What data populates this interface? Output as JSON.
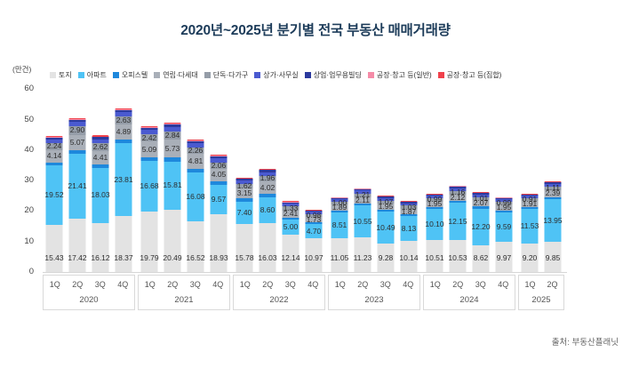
{
  "page": {
    "title": "2020년~2025년 분기별 전국 부동산 매매거래량",
    "unit_label": "(만건)",
    "source": "출처: 부동산플래닛"
  },
  "chart_data": {
    "type": "bar",
    "stacked": true,
    "unit": "만건 (ten-thousand transactions)",
    "title": "2020년~2025년 분기별 전국 부동산 매매거래량",
    "ylim": [
      0,
      60
    ],
    "yticks": [
      0,
      10,
      20,
      30,
      40,
      50,
      60
    ],
    "grid": false,
    "legend_position": "top",
    "groups": [
      {
        "year": "2020",
        "quarters": [
          "1Q",
          "2Q",
          "3Q",
          "4Q"
        ]
      },
      {
        "year": "2021",
        "quarters": [
          "1Q",
          "2Q",
          "3Q",
          "4Q"
        ]
      },
      {
        "year": "2022",
        "quarters": [
          "1Q",
          "2Q",
          "3Q",
          "4Q"
        ]
      },
      {
        "year": "2023",
        "quarters": [
          "1Q",
          "2Q",
          "3Q",
          "4Q"
        ]
      },
      {
        "year": "2024",
        "quarters": [
          "1Q",
          "2Q",
          "3Q",
          "4Q"
        ]
      },
      {
        "year": "2025",
        "quarters": [
          "1Q",
          "2Q"
        ]
      }
    ],
    "series": [
      {
        "name": "토지",
        "color": "#e3e3e3",
        "labeled": true,
        "label_style": "baseline",
        "values": [
          15.43,
          17.42,
          16.12,
          18.37,
          19.79,
          20.49,
          16.52,
          18.93,
          15.78,
          16.03,
          12.14,
          10.97,
          11.05,
          11.23,
          9.28,
          10.14,
          10.51,
          10.53,
          8.62,
          9.97,
          9.2,
          9.85
        ]
      },
      {
        "name": "아파트",
        "color": "#4fc3f5",
        "labeled": true,
        "label_style": "center",
        "values": [
          19.52,
          21.41,
          18.03,
          23.81,
          16.68,
          15.81,
          16.08,
          9.57,
          7.4,
          8.6,
          5.0,
          4.7,
          8.51,
          10.55,
          10.49,
          8.13,
          10.1,
          12.15,
          12.2,
          9.59,
          11.53,
          13.95
        ]
      },
      {
        "name": "오피스텔",
        "color": "#1e88dc",
        "labeled": false,
        "estimated": true,
        "values": [
          1.0,
          1.1,
          1.1,
          1.2,
          1.2,
          1.3,
          1.3,
          1.3,
          1.0,
          1.0,
          0.7,
          0.6,
          0.6,
          0.7,
          0.65,
          0.6,
          0.6,
          0.7,
          0.7,
          0.6,
          0.6,
          0.7
        ]
      },
      {
        "name": "연립·다세대",
        "color": "#a9afb8",
        "labeled": true,
        "label_style": "center",
        "values": [
          4.14,
          5.07,
          4.41,
          4.89,
          5.09,
          5.73,
          4.81,
          4.05,
          3.15,
          4.02,
          2.41,
          1.73,
          1.89,
          2.11,
          1.95,
          1.87,
          1.95,
          2.12,
          2.07,
          1.95,
          1.91,
          2.39
        ]
      },
      {
        "name": "단독·다가구",
        "color": "#959da8",
        "labeled": true,
        "label_style": "center",
        "values": [
          2.24,
          2.9,
          2.62,
          2.63,
          2.42,
          2.84,
          2.26,
          2.06,
          1.62,
          1.96,
          1.33,
          0.98,
          1.0,
          1.21,
          1.07,
          1.03,
          0.99,
          1.16,
          1.01,
          0.99,
          0.91,
          1.11
        ]
      },
      {
        "name": "상가·사무실",
        "color": "#4a5ad0",
        "labeled": false,
        "estimated": true,
        "values": [
          1.2,
          1.4,
          1.3,
          1.5,
          1.4,
          1.5,
          1.4,
          1.5,
          1.1,
          1.2,
          0.9,
          0.8,
          0.8,
          0.9,
          0.85,
          0.8,
          0.8,
          0.9,
          0.85,
          0.8,
          0.8,
          0.9
        ]
      },
      {
        "name": "상업·업무용빌딩",
        "color": "#2c3a9e",
        "labeled": false,
        "estimated": true,
        "values": [
          0.6,
          0.7,
          0.65,
          0.65,
          0.65,
          0.7,
          0.6,
          0.6,
          0.5,
          0.6,
          0.4,
          0.35,
          0.4,
          0.45,
          0.4,
          0.4,
          0.4,
          0.45,
          0.4,
          0.4,
          0.4,
          0.45
        ]
      },
      {
        "name": "공장·창고 등(일반)",
        "color": "#f58ca8",
        "labeled": false,
        "estimated": true,
        "values": [
          0.25,
          0.25,
          0.25,
          0.25,
          0.25,
          0.25,
          0.25,
          0.25,
          0.2,
          0.2,
          0.15,
          0.12,
          0.12,
          0.15,
          0.15,
          0.12,
          0.12,
          0.15,
          0.15,
          0.12,
          0.12,
          0.15
        ]
      },
      {
        "name": "공장·창고 등(집합)",
        "color": "#f0414b",
        "labeled": false,
        "estimated": true,
        "values": [
          0.35,
          0.35,
          0.3,
          0.3,
          0.3,
          0.3,
          0.3,
          0.3,
          0.25,
          0.3,
          0.2,
          0.18,
          0.18,
          0.2,
          0.2,
          0.18,
          0.18,
          0.2,
          0.2,
          0.18,
          0.18,
          0.2
        ]
      }
    ]
  }
}
